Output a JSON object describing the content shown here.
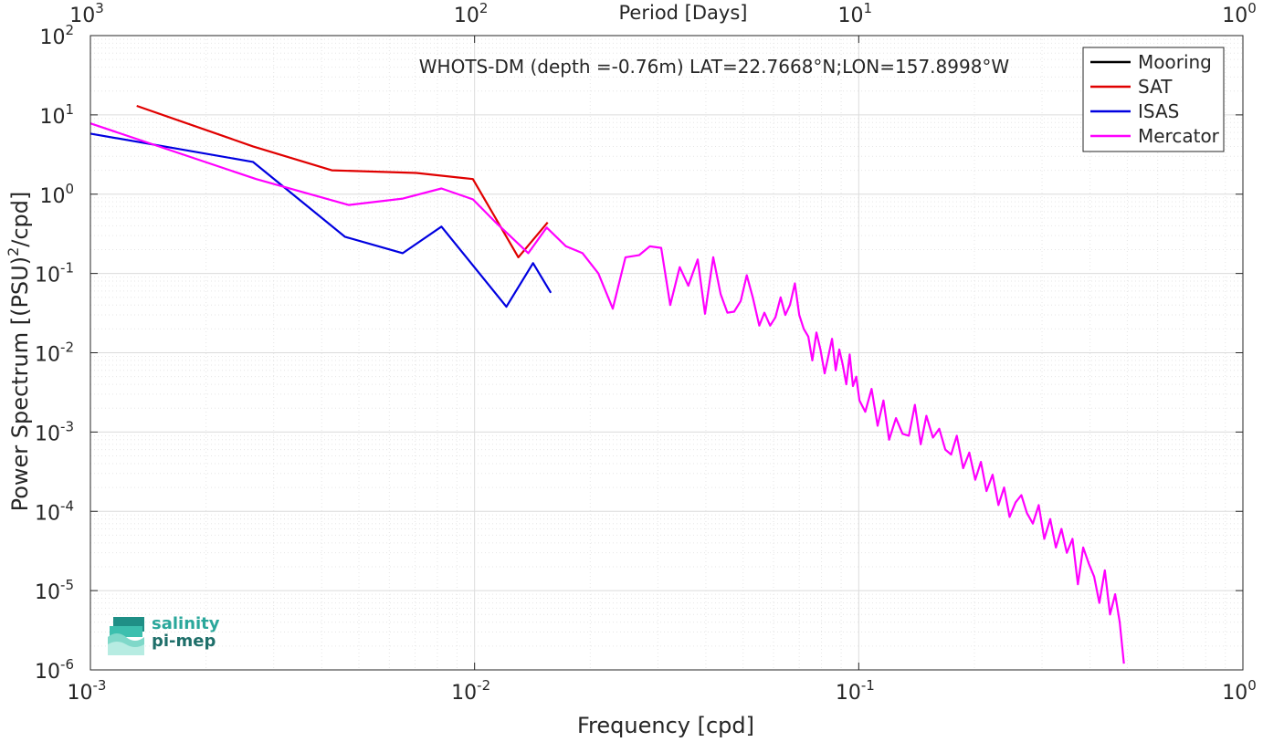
{
  "chart_data": {
    "type": "line",
    "title": "WHOTS-DM (depth =-0.76m) LAT=22.7668°N;LON=157.8998°W",
    "xlabel": "Frequency [cpd]",
    "ylabel_main": "Power Spectrum [(PSU)",
    "ylabel_sup": "2",
    "ylabel_tail": "/cpd]",
    "top_xlabel": "Period [Days]",
    "x_scale": "log",
    "y_scale": "log",
    "xlim": [
      0.001,
      1
    ],
    "ylim": [
      1e-06,
      100
    ],
    "grid": true,
    "legend_position": "top-right",
    "x_ticks": [
      {
        "base": "10",
        "exp": "-3",
        "value": 0.001
      },
      {
        "base": "10",
        "exp": "-2",
        "value": 0.01
      },
      {
        "base": "10",
        "exp": "-1",
        "value": 0.1
      },
      {
        "base": "10",
        "exp": "0",
        "value": 1
      }
    ],
    "top_ticks": [
      {
        "base": "10",
        "exp": "3",
        "value": 0.001
      },
      {
        "base": "10",
        "exp": "2",
        "value": 0.01
      },
      {
        "base": "10",
        "exp": "1",
        "value": 0.1
      },
      {
        "base": "10",
        "exp": "0",
        "value": 1
      }
    ],
    "y_ticks": [
      {
        "base": "10",
        "exp": "2",
        "value": 100
      },
      {
        "base": "10",
        "exp": "1",
        "value": 10
      },
      {
        "base": "10",
        "exp": "0",
        "value": 1
      },
      {
        "base": "10",
        "exp": "-1",
        "value": 0.1
      },
      {
        "base": "10",
        "exp": "-2",
        "value": 0.01
      },
      {
        "base": "10",
        "exp": "-3",
        "value": 0.001
      },
      {
        "base": "10",
        "exp": "-4",
        "value": 0.0001
      },
      {
        "base": "10",
        "exp": "-5",
        "value": 1e-05
      },
      {
        "base": "10",
        "exp": "-6",
        "value": 1e-06
      }
    ],
    "series": [
      {
        "name": "Mooring",
        "color": "#000000",
        "x": [],
        "y": []
      },
      {
        "name": "SAT",
        "color": "#e00000",
        "x": [
          0.00132,
          0.00265,
          0.00425,
          0.00705,
          0.0099,
          0.013,
          0.0155
        ],
        "y": [
          13.0,
          4.0,
          2.0,
          1.85,
          1.55,
          0.16,
          0.44
        ]
      },
      {
        "name": "ISAS",
        "color": "#0000e0",
        "x": [
          0.001,
          0.00265,
          0.0046,
          0.0065,
          0.0082,
          0.0121,
          0.0142,
          0.0158
        ],
        "y": [
          5.8,
          2.55,
          0.29,
          0.18,
          0.39,
          0.038,
          0.135,
          0.057
        ]
      },
      {
        "name": "Mercator",
        "color": "#ff00ff",
        "x": [
          0.001,
          0.0027,
          0.0047,
          0.0065,
          0.0082,
          0.0099,
          0.0113,
          0.0138,
          0.0154,
          0.0173,
          0.0191,
          0.021,
          0.0229,
          0.0247,
          0.0268,
          0.0286,
          0.0306,
          0.0323,
          0.0342,
          0.036,
          0.0381,
          0.0398,
          0.0418,
          0.0437,
          0.0455,
          0.0474,
          0.0493,
          0.0511,
          0.053,
          0.0551,
          0.0568,
          0.0588,
          0.0607,
          0.0626,
          0.0644,
          0.0662,
          0.0682,
          0.07,
          0.0719,
          0.0739,
          0.0757,
          0.0776,
          0.0795,
          0.0815,
          0.0833,
          0.0852,
          0.0871,
          0.089,
          0.0909,
          0.0928,
          0.0947,
          0.0966,
          0.0985,
          0.1004,
          0.104,
          0.108,
          0.112,
          0.116,
          0.12,
          0.125,
          0.13,
          0.135,
          0.14,
          0.145,
          0.15,
          0.156,
          0.162,
          0.168,
          0.174,
          0.18,
          0.187,
          0.194,
          0.201,
          0.208,
          0.215,
          0.223,
          0.231,
          0.239,
          0.247,
          0.256,
          0.265,
          0.274,
          0.284,
          0.294,
          0.304,
          0.315,
          0.326,
          0.337,
          0.348,
          0.36,
          0.372,
          0.384,
          0.397,
          0.41,
          0.423,
          0.437,
          0.451,
          0.465,
          0.478,
          0.49
        ],
        "y": [
          7.8,
          1.55,
          0.73,
          0.88,
          1.18,
          0.86,
          0.45,
          0.18,
          0.38,
          0.22,
          0.18,
          0.1,
          0.036,
          0.16,
          0.17,
          0.22,
          0.21,
          0.04,
          0.12,
          0.07,
          0.15,
          0.031,
          0.16,
          0.055,
          0.032,
          0.033,
          0.045,
          0.095,
          0.05,
          0.022,
          0.032,
          0.022,
          0.028,
          0.05,
          0.03,
          0.04,
          0.075,
          0.03,
          0.02,
          0.016,
          0.008,
          0.018,
          0.011,
          0.0055,
          0.009,
          0.015,
          0.006,
          0.011,
          0.007,
          0.004,
          0.0095,
          0.0038,
          0.005,
          0.0025,
          0.0018,
          0.0035,
          0.0012,
          0.0025,
          0.0008,
          0.0015,
          0.00095,
          0.0009,
          0.0022,
          0.0007,
          0.0016,
          0.00085,
          0.0011,
          0.0006,
          0.00052,
          0.0009,
          0.00035,
          0.00055,
          0.00025,
          0.00042,
          0.00018,
          0.00029,
          0.00012,
          0.0002,
          8.5e-05,
          0.00013,
          0.00016,
          9.5e-05,
          7e-05,
          0.00012,
          4.5e-05,
          8e-05,
          3.5e-05,
          6e-05,
          3e-05,
          4.5e-05,
          1.2e-05,
          3.5e-05,
          2.2e-05,
          1.5e-05,
          7e-06,
          1.8e-05,
          5e-06,
          9e-06,
          4e-06,
          1.2e-06
        ]
      }
    ]
  },
  "logo": {
    "line1": "salinity",
    "line2": "pi-mep"
  }
}
